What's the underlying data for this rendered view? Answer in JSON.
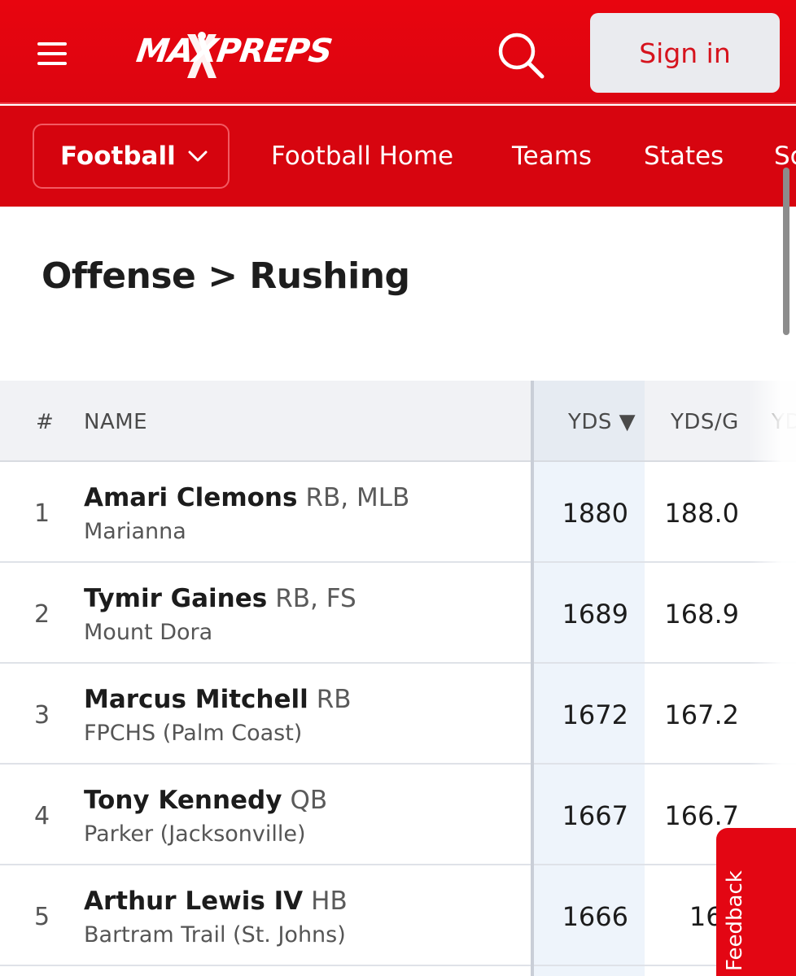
{
  "header": {
    "logo_text": "MAXPREPS",
    "signin_label": "Sign in"
  },
  "subnav": {
    "sport": "Football",
    "links": [
      "Football Home",
      "Teams",
      "States",
      "Sc"
    ]
  },
  "page": {
    "title": "Offense > Rushing"
  },
  "table": {
    "columns": [
      "#",
      "NAME",
      "YDS ▼",
      "YDS/G",
      "YD"
    ],
    "rows": [
      {
        "rank": "1",
        "name": "Amari Clemons",
        "pos": "RB, MLB",
        "school": "Marianna",
        "yds": "1880",
        "ydsg": "188.0"
      },
      {
        "rank": "2",
        "name": "Tymir Gaines",
        "pos": "RB, FS",
        "school": "Mount Dora",
        "yds": "1689",
        "ydsg": "168.9"
      },
      {
        "rank": "3",
        "name": "Marcus Mitchell",
        "pos": "RB",
        "school": "FPCHS (Palm Coast)",
        "yds": "1672",
        "ydsg": "167.2"
      },
      {
        "rank": "4",
        "name": "Tony Kennedy",
        "pos": "QB",
        "school": "Parker (Jacksonville)",
        "yds": "1667",
        "ydsg": "166.7"
      },
      {
        "rank": "5",
        "name": "Arthur Lewis IV",
        "pos": "HB",
        "school": "Bartram Trail (St. Johns)",
        "yds": "1666",
        "ydsg": "166"
      }
    ]
  },
  "feedback": {
    "label": "Feedback"
  },
  "colors": {
    "brand_red": "#e30613",
    "signin_text": "#d6131d"
  }
}
